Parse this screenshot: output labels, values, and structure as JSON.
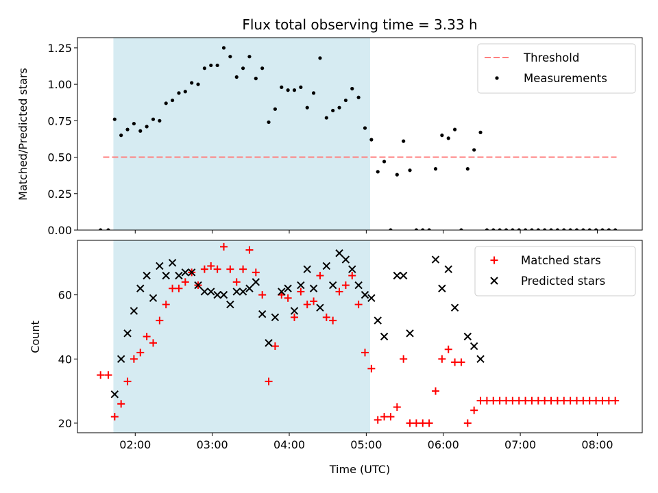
{
  "chart_data": [
    {
      "type": "scatter",
      "title": "Flux total observing time = 3.33 h",
      "ylabel": "Matched/Predicted stars",
      "xlabel": "",
      "xlim": [
        "01:15",
        "08:35"
      ],
      "ylim": [
        0,
        1.32
      ],
      "yticks": [
        "0.00",
        "0.25",
        "0.50",
        "0.75",
        "1.00",
        "1.25"
      ],
      "xticks": [
        "02:00",
        "03:00",
        "04:00",
        "05:00",
        "06:00",
        "07:00",
        "08:00"
      ],
      "shaded_span": [
        "01:43",
        "05:03"
      ],
      "shaded_color": "#add8e6",
      "threshold": {
        "name": "Threshold",
        "value": 0.5,
        "from": "01:35",
        "to": "08:15",
        "color": "#ff7f7f"
      },
      "series": [
        {
          "name": "Measurements",
          "color": "#000000",
          "marker": "dot",
          "points": [
            [
              "01:33",
              0
            ],
            [
              "01:39",
              0
            ],
            [
              "01:44",
              0.76
            ],
            [
              "01:49",
              0.65
            ],
            [
              "01:54",
              0.69
            ],
            [
              "01:59",
              0.73
            ],
            [
              "02:04",
              0.68
            ],
            [
              "02:09",
              0.71
            ],
            [
              "02:14",
              0.76
            ],
            [
              "02:19",
              0.75
            ],
            [
              "02:24",
              0.87
            ],
            [
              "02:29",
              0.89
            ],
            [
              "02:34",
              0.94
            ],
            [
              "02:39",
              0.95
            ],
            [
              "02:44",
              1.01
            ],
            [
              "02:49",
              1.0
            ],
            [
              "02:54",
              1.11
            ],
            [
              "02:59",
              1.13
            ],
            [
              "03:04",
              1.13
            ],
            [
              "03:09",
              1.25
            ],
            [
              "03:14",
              1.19
            ],
            [
              "03:19",
              1.05
            ],
            [
              "03:24",
              1.11
            ],
            [
              "03:29",
              1.19
            ],
            [
              "03:34",
              1.04
            ],
            [
              "03:39",
              1.11
            ],
            [
              "03:44",
              0.74
            ],
            [
              "03:49",
              0.83
            ],
            [
              "03:54",
              0.98
            ],
            [
              "03:59",
              0.96
            ],
            [
              "04:04",
              0.96
            ],
            [
              "04:09",
              0.98
            ],
            [
              "04:14",
              0.84
            ],
            [
              "04:19",
              0.94
            ],
            [
              "04:24",
              1.18
            ],
            [
              "04:29",
              0.77
            ],
            [
              "04:34",
              0.82
            ],
            [
              "04:39",
              0.84
            ],
            [
              "04:44",
              0.89
            ],
            [
              "04:49",
              0.97
            ],
            [
              "04:54",
              0.91
            ],
            [
              "04:59",
              0.7
            ],
            [
              "05:04",
              0.62
            ],
            [
              "05:09",
              0.4
            ],
            [
              "05:14",
              0.47
            ],
            [
              "05:19",
              0
            ],
            [
              "05:24",
              0.38
            ],
            [
              "05:29",
              0.61
            ],
            [
              "05:34",
              0.41
            ],
            [
              "05:39",
              0
            ],
            [
              "05:44",
              0
            ],
            [
              "05:49",
              0
            ],
            [
              "05:54",
              0.42
            ],
            [
              "05:59",
              0.65
            ],
            [
              "06:04",
              0.63
            ],
            [
              "06:09",
              0.69
            ],
            [
              "06:14",
              0
            ],
            [
              "06:19",
              0.42
            ],
            [
              "06:24",
              0.55
            ],
            [
              "06:29",
              0.67
            ],
            [
              "06:34",
              0
            ],
            [
              "06:39",
              0
            ],
            [
              "06:44",
              0
            ],
            [
              "06:49",
              0
            ],
            [
              "06:54",
              0
            ],
            [
              "06:59",
              0
            ],
            [
              "07:04",
              0
            ],
            [
              "07:09",
              0
            ],
            [
              "07:14",
              0
            ],
            [
              "07:19",
              0
            ],
            [
              "07:24",
              0
            ],
            [
              "07:29",
              0
            ],
            [
              "07:34",
              0
            ],
            [
              "07:39",
              0
            ],
            [
              "07:44",
              0
            ],
            [
              "07:49",
              0
            ],
            [
              "07:54",
              0
            ],
            [
              "07:59",
              0
            ],
            [
              "08:04",
              0
            ],
            [
              "08:09",
              0
            ],
            [
              "08:14",
              0
            ]
          ]
        }
      ],
      "legend": "top-right"
    },
    {
      "type": "scatter",
      "title": "",
      "ylabel": "Count",
      "xlabel": "Time (UTC)",
      "xlim": [
        "01:15",
        "08:35"
      ],
      "ylim": [
        17,
        77
      ],
      "yticks": [
        "20",
        "40",
        "60"
      ],
      "xticks": [
        "02:00",
        "03:00",
        "04:00",
        "05:00",
        "06:00",
        "07:00",
        "08:00"
      ],
      "shaded_span": [
        "01:43",
        "05:03"
      ],
      "series": [
        {
          "name": "Matched stars",
          "color": "#ff0000",
          "marker": "plus",
          "points": [
            [
              "01:33",
              35
            ],
            [
              "01:39",
              35
            ],
            [
              "01:44",
              22
            ],
            [
              "01:49",
              26
            ],
            [
              "01:54",
              33
            ],
            [
              "01:59",
              40
            ],
            [
              "02:04",
              42
            ],
            [
              "02:09",
              47
            ],
            [
              "02:14",
              45
            ],
            [
              "02:19",
              52
            ],
            [
              "02:24",
              57
            ],
            [
              "02:29",
              62
            ],
            [
              "02:34",
              62
            ],
            [
              "02:39",
              64
            ],
            [
              "02:44",
              67
            ],
            [
              "02:49",
              63
            ],
            [
              "02:54",
              68
            ],
            [
              "02:59",
              69
            ],
            [
              "03:04",
              68
            ],
            [
              "03:09",
              75
            ],
            [
              "03:14",
              68
            ],
            [
              "03:19",
              64
            ],
            [
              "03:24",
              68
            ],
            [
              "03:29",
              74
            ],
            [
              "03:34",
              67
            ],
            [
              "03:39",
              60
            ],
            [
              "03:44",
              33
            ],
            [
              "03:49",
              44
            ],
            [
              "03:54",
              60
            ],
            [
              "03:59",
              59
            ],
            [
              "04:04",
              53
            ],
            [
              "04:09",
              61
            ],
            [
              "04:14",
              57
            ],
            [
              "04:19",
              58
            ],
            [
              "04:24",
              66
            ],
            [
              "04:29",
              53
            ],
            [
              "04:34",
              52
            ],
            [
              "04:39",
              61
            ],
            [
              "04:44",
              63
            ],
            [
              "04:49",
              66
            ],
            [
              "04:54",
              57
            ],
            [
              "04:59",
              42
            ],
            [
              "05:04",
              37
            ],
            [
              "05:09",
              21
            ],
            [
              "05:14",
              22
            ],
            [
              "05:19",
              22
            ],
            [
              "05:24",
              25
            ],
            [
              "05:29",
              40
            ],
            [
              "05:34",
              20
            ],
            [
              "05:39",
              20
            ],
            [
              "05:44",
              20
            ],
            [
              "05:49",
              20
            ],
            [
              "05:54",
              30
            ],
            [
              "05:59",
              40
            ],
            [
              "06:04",
              43
            ],
            [
              "06:09",
              39
            ],
            [
              "06:14",
              39
            ],
            [
              "06:19",
              20
            ],
            [
              "06:24",
              24
            ],
            [
              "06:29",
              27
            ],
            [
              "06:34",
              27
            ],
            [
              "06:39",
              27
            ],
            [
              "06:44",
              27
            ],
            [
              "06:49",
              27
            ],
            [
              "06:54",
              27
            ],
            [
              "06:59",
              27
            ],
            [
              "07:04",
              27
            ],
            [
              "07:09",
              27
            ],
            [
              "07:14",
              27
            ],
            [
              "07:19",
              27
            ],
            [
              "07:24",
              27
            ],
            [
              "07:29",
              27
            ],
            [
              "07:34",
              27
            ],
            [
              "07:39",
              27
            ],
            [
              "07:44",
              27
            ],
            [
              "07:49",
              27
            ],
            [
              "07:54",
              27
            ],
            [
              "07:59",
              27
            ],
            [
              "08:04",
              27
            ],
            [
              "08:09",
              27
            ],
            [
              "08:14",
              27
            ]
          ]
        },
        {
          "name": "Predicted stars",
          "color": "#000000",
          "marker": "x",
          "points": [
            [
              "01:44",
              29
            ],
            [
              "01:49",
              40
            ],
            [
              "01:54",
              48
            ],
            [
              "01:59",
              55
            ],
            [
              "02:04",
              62
            ],
            [
              "02:09",
              66
            ],
            [
              "02:14",
              59
            ],
            [
              "02:19",
              69
            ],
            [
              "02:24",
              66
            ],
            [
              "02:29",
              70
            ],
            [
              "02:34",
              66
            ],
            [
              "02:39",
              67
            ],
            [
              "02:44",
              67
            ],
            [
              "02:49",
              63
            ],
            [
              "02:54",
              61
            ],
            [
              "02:59",
              61
            ],
            [
              "03:04",
              60
            ],
            [
              "03:09",
              60
            ],
            [
              "03:14",
              57
            ],
            [
              "03:19",
              61
            ],
            [
              "03:24",
              61
            ],
            [
              "03:29",
              62
            ],
            [
              "03:34",
              64
            ],
            [
              "03:39",
              54
            ],
            [
              "03:44",
              45
            ],
            [
              "03:49",
              53
            ],
            [
              "03:54",
              61
            ],
            [
              "03:59",
              62
            ],
            [
              "04:04",
              55
            ],
            [
              "04:09",
              63
            ],
            [
              "04:14",
              68
            ],
            [
              "04:19",
              62
            ],
            [
              "04:24",
              56
            ],
            [
              "04:29",
              69
            ],
            [
              "04:34",
              63
            ],
            [
              "04:39",
              73
            ],
            [
              "04:44",
              71
            ],
            [
              "04:49",
              68
            ],
            [
              "04:54",
              63
            ],
            [
              "04:59",
              60
            ],
            [
              "05:04",
              59
            ],
            [
              "05:09",
              52
            ],
            [
              "05:14",
              47
            ],
            [
              "05:24",
              66
            ],
            [
              "05:29",
              66
            ],
            [
              "05:34",
              48
            ],
            [
              "05:54",
              71
            ],
            [
              "05:59",
              62
            ],
            [
              "06:04",
              68
            ],
            [
              "06:09",
              56
            ],
            [
              "06:19",
              47
            ],
            [
              "06:24",
              44
            ],
            [
              "06:29",
              40
            ]
          ]
        }
      ],
      "legend": "top-right"
    }
  ]
}
